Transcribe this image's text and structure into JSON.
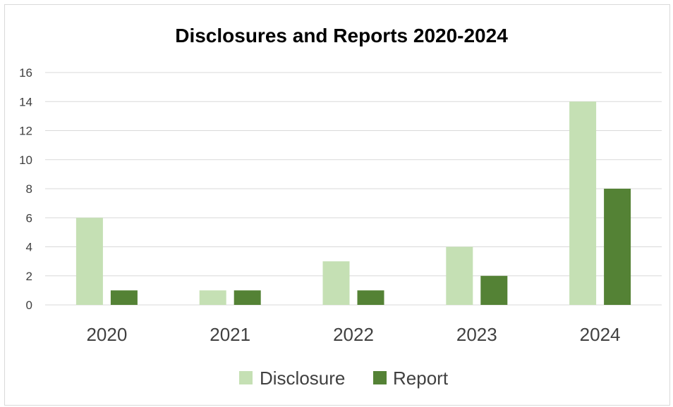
{
  "chart_data": {
    "type": "bar",
    "title": "Disclosures and Reports 2020-2024",
    "categories": [
      "2020",
      "2021",
      "2022",
      "2023",
      "2024"
    ],
    "series": [
      {
        "name": "Disclosure",
        "values": [
          6,
          1,
          3,
          4,
          14
        ],
        "color": "#c5e0b4"
      },
      {
        "name": "Report",
        "values": [
          1,
          1,
          1,
          2,
          8
        ],
        "color": "#548235"
      }
    ],
    "ylim": [
      0,
      16
    ],
    "yticks": [
      "0",
      "2",
      "4",
      "6",
      "8",
      "10",
      "12",
      "14",
      "16"
    ],
    "grid": true,
    "legend_position": "bottom"
  }
}
